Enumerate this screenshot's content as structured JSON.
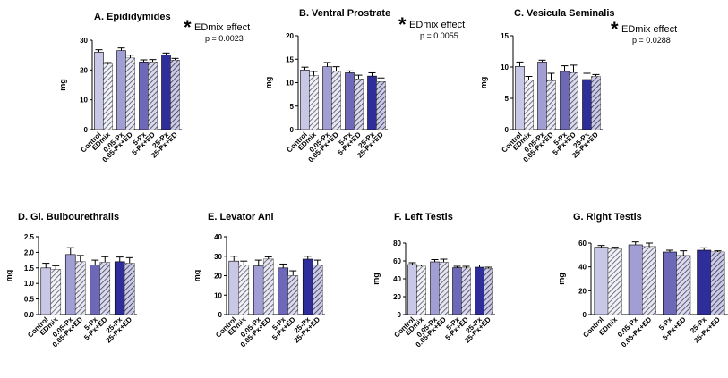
{
  "figure": {
    "colors": {
      "control": "#c9c7e6",
      "px005": "#a19ed4",
      "px5": "#6d68b8",
      "px25": "#2e2d9a",
      "edmix": "#c9c7e6"
    }
  },
  "chart_data": [
    {
      "type": "bar",
      "title": "A. Epididymides",
      "ylabel": "mg",
      "ylim": [
        0,
        30
      ],
      "yticks": [
        "0",
        "10",
        "20",
        "30"
      ],
      "categories": [
        "Control",
        "EDmix",
        "0.05-Px",
        "0.05-Px+ED",
        "5-Px",
        "5-Px+ED",
        "25-Px",
        "25-Px+ED"
      ],
      "values": [
        26.0,
        22.0,
        26.5,
        24.0,
        22.7,
        22.7,
        25.0,
        23.3
      ],
      "errors": [
        0.8,
        0.5,
        0.9,
        1.0,
        0.7,
        0.8,
        0.7,
        0.6
      ],
      "annotation": {
        "star": "*",
        "effect": "EDmix effect",
        "p": "p = 0.0023"
      }
    },
    {
      "type": "bar",
      "title": "B. Ventral Prostrate",
      "ylabel": "mg",
      "ylim": [
        0,
        20
      ],
      "yticks": [
        "0",
        "5",
        "10",
        "15",
        "20"
      ],
      "categories": [
        "Control",
        "EDmix",
        "0.05-Px",
        "0.05-Px+ED",
        "5-Px",
        "5-Px+ED",
        "25-Px",
        "25-Px+ED"
      ],
      "values": [
        12.7,
        11.5,
        13.4,
        12.4,
        12.1,
        10.8,
        11.4,
        10.2
      ],
      "errors": [
        0.6,
        0.9,
        0.9,
        1.0,
        0.4,
        0.8,
        0.7,
        0.8
      ],
      "annotation": {
        "star": "*",
        "effect": "EDmix effect",
        "p": "p = 0.0055"
      }
    },
    {
      "type": "bar",
      "title": "C. Vesicula Seminalis",
      "ylabel": "mg",
      "ylim": [
        0,
        15
      ],
      "yticks": [
        "0",
        "5",
        "10",
        "15"
      ],
      "categories": [
        "Control",
        "EDmix",
        "0.05-Px",
        "0.05-Px+ED",
        "5-Px",
        "5-Px+ED",
        "25-Px",
        "25-Px+ED"
      ],
      "values": [
        10.1,
        7.9,
        10.8,
        7.8,
        9.3,
        9.1,
        8.0,
        8.5
      ],
      "errors": [
        0.7,
        0.6,
        0.3,
        1.2,
        0.9,
        1.2,
        1.0,
        0.3
      ],
      "annotation": {
        "star": "*",
        "effect": "EDmix effect",
        "p": "p = 0.0288"
      }
    },
    {
      "type": "bar",
      "title": "D. Gl. Bulbourethralis",
      "ylabel": "mg",
      "ylim": [
        0,
        2.5
      ],
      "yticks": [
        "0.0",
        "0.5",
        "1.0",
        "1.5",
        "2.0",
        "2.5"
      ],
      "categories": [
        "Control",
        "EDmix",
        "0.05-Px",
        "0.05-Px+ED",
        "5-Px",
        "5-Px+ED",
        "25-Px",
        "25-Px+ED"
      ],
      "values": [
        1.5,
        1.45,
        1.93,
        1.7,
        1.6,
        1.68,
        1.7,
        1.65
      ],
      "errors": [
        0.15,
        0.12,
        0.22,
        0.2,
        0.15,
        0.18,
        0.15,
        0.18
      ]
    },
    {
      "type": "bar",
      "title": "E. Levator Ani",
      "ylabel": "mg",
      "ylim": [
        0,
        40
      ],
      "yticks": [
        "0",
        "10",
        "20",
        "30",
        "40"
      ],
      "categories": [
        "Control",
        "EDmix",
        "0.05-Px",
        "0.05-Px+ED",
        "5-Px",
        "5-Px+ED",
        "25-Px",
        "25-Px+ED"
      ],
      "values": [
        27.5,
        25.5,
        25.0,
        28.5,
        24.0,
        20.0,
        28.5,
        25.5
      ],
      "errors": [
        2.5,
        2.0,
        3.0,
        1.2,
        2.0,
        2.5,
        1.5,
        2.5
      ]
    },
    {
      "type": "bar",
      "title": "F. Left Testis",
      "ylabel": "mg",
      "ylim": [
        0,
        80
      ],
      "yticks": [
        "0",
        "20",
        "40",
        "60",
        "80"
      ],
      "categories": [
        "Control",
        "EDmix",
        "0.05-Px",
        "0.05-Px+ED",
        "5-Px",
        "5-Px+ED",
        "25-Px",
        "25-Px+ED"
      ],
      "values": [
        56.0,
        54.0,
        59.0,
        58.5,
        52.5,
        52.0,
        53.0,
        51.5
      ],
      "errors": [
        2.0,
        1.5,
        2.5,
        3.5,
        1.5,
        2.0,
        2.5,
        1.5
      ]
    },
    {
      "type": "bar",
      "title": "G. Right Testis",
      "ylabel": "mg",
      "ylim": [
        0,
        60
      ],
      "yticks": [
        "0",
        "20",
        "40",
        "60"
      ],
      "categories": [
        "Control",
        "EDmix",
        "0.05-Px",
        "0.05-Px+ED",
        "5-Px",
        "5-Px+ED",
        "25-Px",
        "25-Px+ED"
      ],
      "values": [
        56.5,
        55.0,
        58.5,
        57.0,
        52.5,
        49.5,
        54.0,
        52.5
      ],
      "errors": [
        1.5,
        1.5,
        2.5,
        3.0,
        1.5,
        4.0,
        2.0,
        1.0
      ]
    }
  ]
}
